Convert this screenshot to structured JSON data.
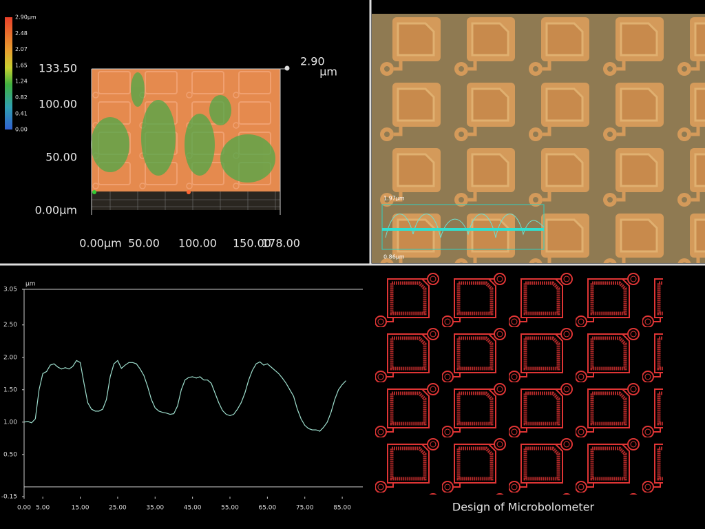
{
  "surface": {
    "colorbar_labels": [
      "2.90µm",
      "2.48",
      "2.07",
      "1.65",
      "1.24",
      "0.82",
      "0.41",
      "0.00"
    ],
    "y_labels": [
      "133.50",
      "100.00",
      "50.00",
      "0.00µm"
    ],
    "x_labels": [
      "0.00µm",
      "50.00",
      "100.00",
      "150.00",
      "178.00"
    ],
    "max_value": "2.90",
    "max_unit": "µm"
  },
  "micrograph": {
    "profile_top": "1.97µm",
    "profile_bottom": "0.86µm"
  },
  "chart_data": {
    "type": "line",
    "y_label": "µm",
    "color": "#9fe0cf",
    "x": [
      0,
      1,
      2,
      3,
      4,
      5,
      6,
      7,
      8,
      9,
      10,
      11,
      12,
      13,
      14,
      15,
      16,
      17,
      18,
      19,
      20,
      21,
      22,
      23,
      24,
      25,
      26,
      27,
      28,
      29,
      30,
      31,
      32,
      33,
      34,
      35,
      36,
      37,
      38,
      39,
      40,
      41,
      42,
      43,
      44,
      45,
      46,
      47,
      48,
      49,
      50,
      51,
      52,
      53,
      54,
      55,
      56,
      57,
      58,
      59,
      60,
      61,
      62,
      63,
      64,
      65,
      66,
      67,
      68,
      69,
      70,
      71,
      72,
      73,
      74,
      75,
      76,
      77,
      78,
      79,
      80,
      81,
      82,
      83,
      84,
      85,
      86
    ],
    "values": [
      1.0,
      1.01,
      0.99,
      1.05,
      1.5,
      1.75,
      1.78,
      1.88,
      1.9,
      1.85,
      1.82,
      1.84,
      1.82,
      1.86,
      1.95,
      1.92,
      1.6,
      1.3,
      1.2,
      1.17,
      1.17,
      1.2,
      1.35,
      1.7,
      1.9,
      1.95,
      1.83,
      1.88,
      1.92,
      1.92,
      1.9,
      1.82,
      1.72,
      1.55,
      1.35,
      1.22,
      1.17,
      1.15,
      1.14,
      1.12,
      1.13,
      1.25,
      1.5,
      1.65,
      1.69,
      1.7,
      1.68,
      1.7,
      1.65,
      1.65,
      1.6,
      1.45,
      1.3,
      1.18,
      1.12,
      1.1,
      1.12,
      1.2,
      1.3,
      1.45,
      1.65,
      1.8,
      1.9,
      1.93,
      1.88,
      1.9,
      1.85,
      1.8,
      1.75,
      1.68,
      1.6,
      1.5,
      1.4,
      1.2,
      1.05,
      0.95,
      0.9,
      0.88,
      0.88,
      0.86,
      0.92,
      1.0,
      1.15,
      1.35,
      1.5,
      1.58,
      1.64
    ],
    "xlim": [
      0,
      90.5
    ],
    "ylim": [
      -0.15,
      3.05
    ],
    "xticks": [
      {
        "value": 0,
        "label": "0.00"
      },
      {
        "value": 5,
        "label": "5.00"
      },
      {
        "value": 15,
        "label": "15.00"
      },
      {
        "value": 25,
        "label": "25.00"
      },
      {
        "value": 35,
        "label": "35.00"
      },
      {
        "value": 45,
        "label": "45.00"
      },
      {
        "value": 55,
        "label": "55.00"
      },
      {
        "value": 65,
        "label": "65.00"
      },
      {
        "value": 75,
        "label": "75.00"
      },
      {
        "value": 85,
        "label": "85.00"
      }
    ],
    "yticks": [
      {
        "value": -0.15,
        "label": "-0.15"
      },
      {
        "value": 0.5,
        "label": "0.50"
      },
      {
        "value": 1,
        "label": "1.00"
      },
      {
        "value": 1.5,
        "label": "1.50"
      },
      {
        "value": 2,
        "label": "2.00"
      },
      {
        "value": 2.5,
        "label": "2.50"
      },
      {
        "value": 3.05,
        "label": "3.05"
      }
    ]
  },
  "design": {
    "caption": "Design of Microbolometer"
  }
}
